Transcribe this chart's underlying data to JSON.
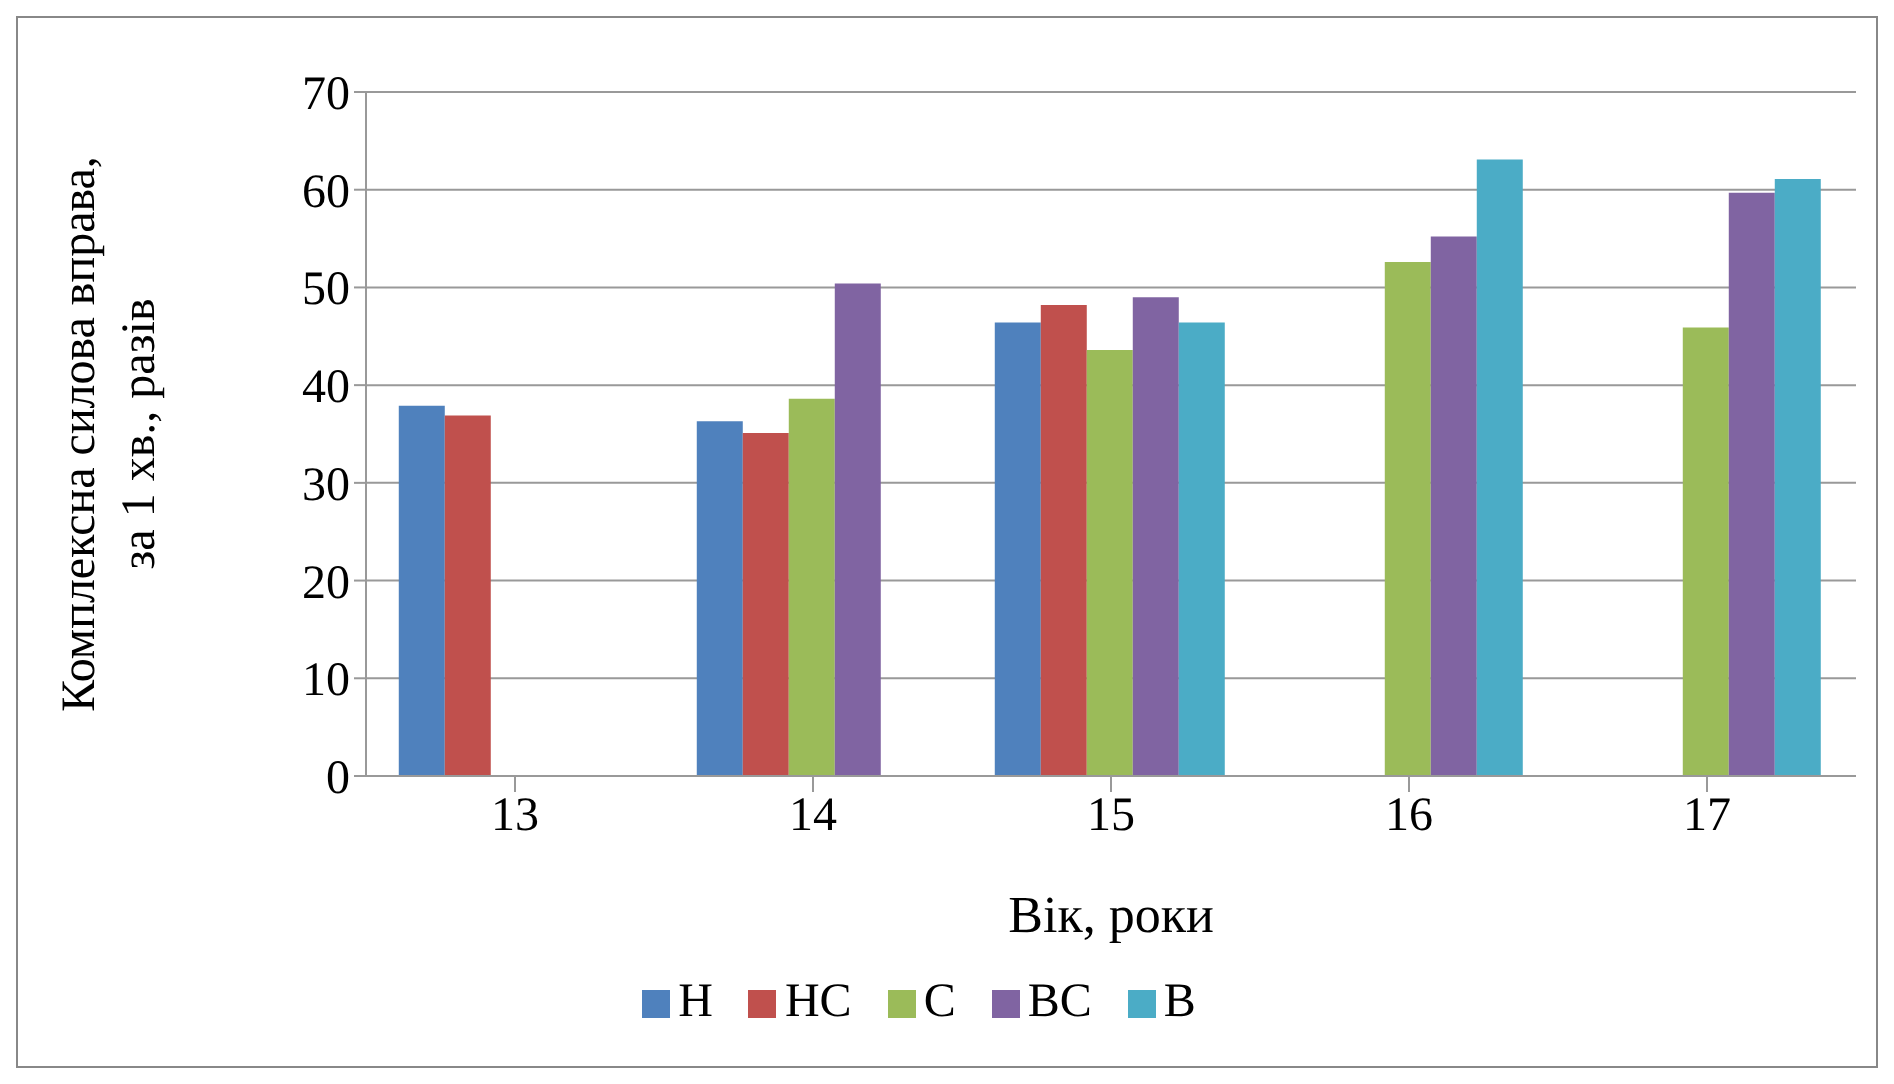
{
  "chart_data": {
    "type": "bar",
    "xlabel": "Вік, роки",
    "ylabel": "Комплексна  силова вправа,\nза 1 хв., разів",
    "categories": [
      "13",
      "14",
      "15",
      "16",
      "17"
    ],
    "series": [
      {
        "name": "Н",
        "color": "#4f81bd",
        "values": [
          37.9,
          36.3,
          46.4,
          null,
          null
        ]
      },
      {
        "name": "НС",
        "color": "#c0504d",
        "values": [
          36.9,
          35.1,
          48.2,
          null,
          null
        ]
      },
      {
        "name": "С",
        "color": "#9bbb59",
        "values": [
          null,
          38.6,
          43.6,
          52.6,
          45.9
        ]
      },
      {
        "name": "ВС",
        "color": "#8064a2",
        "values": [
          null,
          50.4,
          49.0,
          55.2,
          59.7
        ]
      },
      {
        "name": "В",
        "color": "#4bacc6",
        "values": [
          null,
          null,
          46.4,
          63.1,
          61.1
        ]
      }
    ],
    "ylim": [
      0,
      70
    ],
    "yticks": [
      0,
      10,
      20,
      30,
      40,
      50,
      60,
      70
    ],
    "grid": "y",
    "legend": "bottom"
  }
}
